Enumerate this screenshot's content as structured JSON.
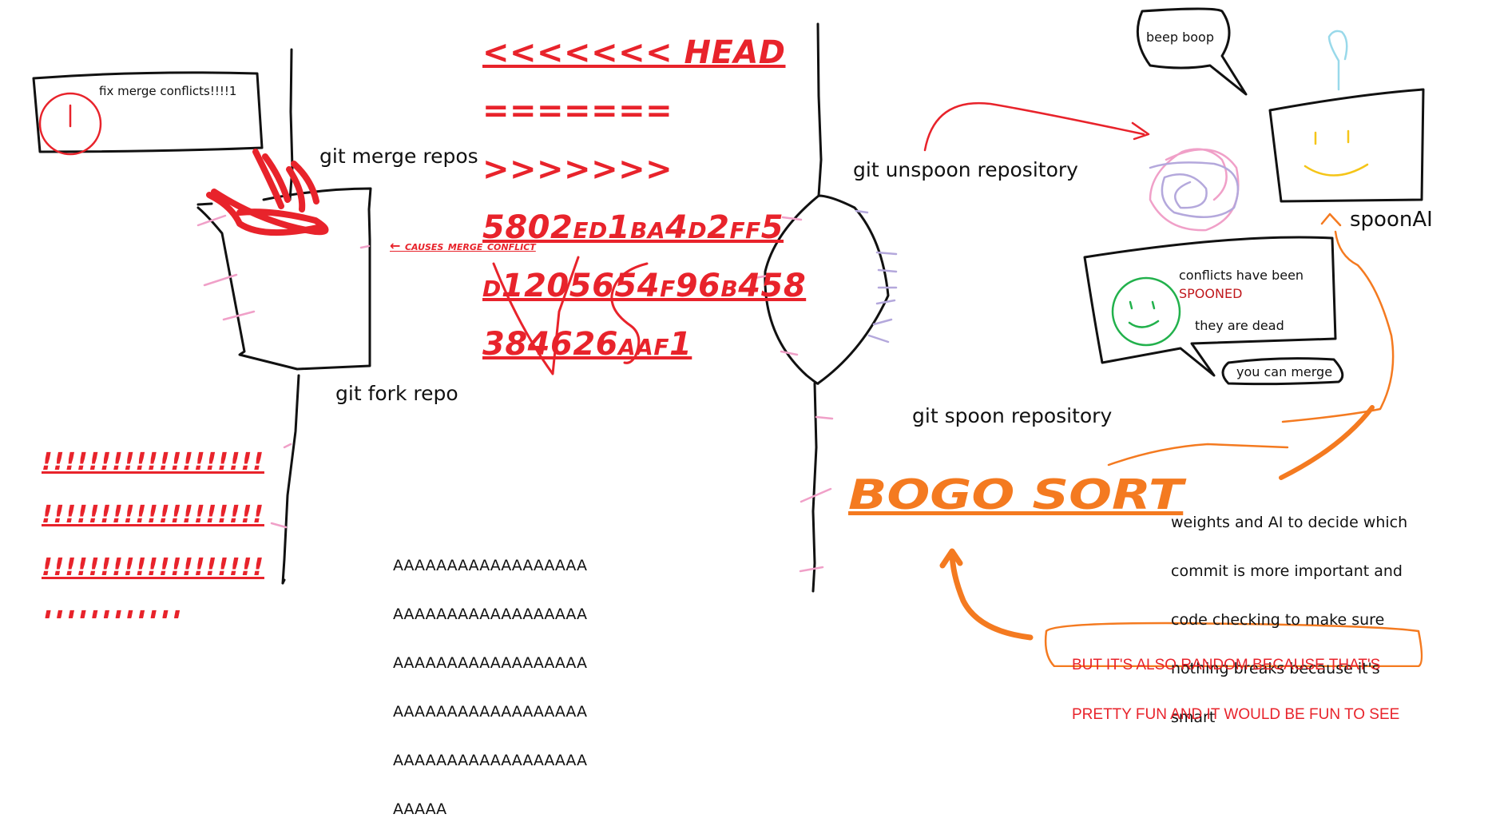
{
  "notes": {
    "fix_merge": "fix merge conflicts!!!!1",
    "git_merge_repos": "git merge repos",
    "git_fork_repo": "git fork repo",
    "causes_merge_conflict": "← causes merge conflict",
    "git_unspoon_repository": "git unspoon repository",
    "git_spoon_repository": "git spoon repository",
    "beep_boop": "beep boop",
    "spoonai": "spoonAI",
    "conflicts_have_been": "conflicts have been",
    "spooned": "SPOONED",
    "they_are_dead": "they are dead",
    "you_can_merge": "you can merge",
    "bogo_sort": "BOGO SORT"
  },
  "conflict_markers": [
    "<<<<<<< HEAD",
    "=======",
    ">>>>>>>",
    "5802ed1ba4d2ff5",
    "d1205654f96b458",
    "384626aaf1"
  ],
  "exclamations": [
    "!!!!!!!!!!!!!!!!!!!",
    "!!!!!!!!!!!!!!!!!!!",
    "!!!!!!!!!!!!!!!!!!!",
    "!!!!!!!!!!!!"
  ],
  "screams": [
    "AAAAAAAAAAAAAAAAAA",
    "AAAAAAAAAAAAAAAAAA",
    "AAAAAAAAAAAAAAAAAA",
    "AAAAAAAAAAAAAAAAAA",
    "AAAAAAAAAAAAAAAAAA",
    "AAAAA"
  ],
  "weights_text": [
    "weights and AI to decide which",
    "commit is more important and",
    "code checking to make sure",
    "nothing breaks because it's",
    "smart"
  ],
  "random_text": [
    "BUT IT'S ALSO RANDOM BECAUSE THAT'S",
    "PRETTY FUN AND IT WOULD BE FUN TO SEE"
  ],
  "colors": {
    "ink": "#111111",
    "red": "#e8232b",
    "orange": "#f47a20",
    "green": "#22b14c",
    "pink": "#f0a0c8",
    "lavender": "#b4a8dc",
    "yellow": "#f5c518",
    "cyan": "#99d9ea"
  }
}
